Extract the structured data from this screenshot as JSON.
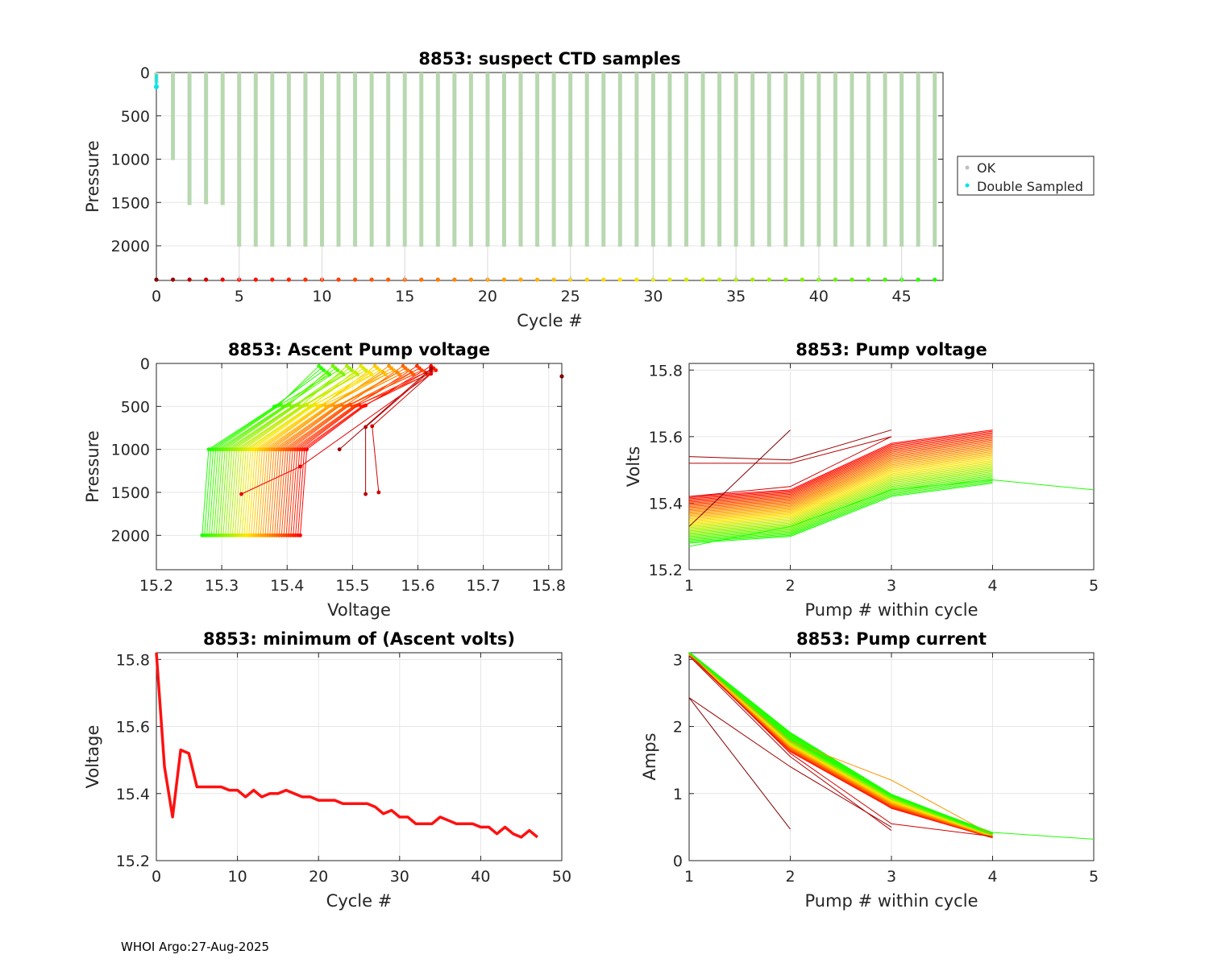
{
  "footer": "WHOI Argo:27-Aug-2025",
  "palette": {
    "ok": "#bfbfbf",
    "ok_bar": "#b8d8b0",
    "double": "#00e5ee",
    "min_line": "#ff1010"
  },
  "chart_data": [
    {
      "id": "suspect",
      "type": "scatter",
      "title": "8853: suspect CTD samples",
      "xlabel": "Cycle #",
      "ylabel": "Pressure",
      "xlim": [
        0,
        47.5
      ],
      "ylim": [
        2400,
        0
      ],
      "xticks": [
        0,
        5,
        10,
        15,
        20,
        25,
        30,
        35,
        40,
        45
      ],
      "yticks": [
        0,
        500,
        1000,
        1500,
        2000
      ],
      "legend": {
        "position": "right",
        "entries": [
          "OK",
          "Double Sampled"
        ]
      },
      "cycles": [
        0,
        1,
        2,
        3,
        4,
        5,
        6,
        7,
        8,
        9,
        10,
        11,
        12,
        13,
        14,
        15,
        16,
        17,
        18,
        19,
        20,
        21,
        22,
        23,
        24,
        25,
        26,
        27,
        28,
        29,
        30,
        31,
        32,
        33,
        34,
        35,
        36,
        37,
        38,
        39,
        40,
        41,
        42,
        43,
        44,
        45,
        46,
        47
      ],
      "max_pressure": [
        120,
        1010,
        1530,
        1520,
        1530,
        2010,
        2010,
        2010,
        2010,
        2010,
        2010,
        2010,
        2010,
        2010,
        2010,
        2010,
        2010,
        2010,
        2010,
        2010,
        2010,
        2010,
        2010,
        2010,
        2010,
        2010,
        2010,
        2010,
        2010,
        2010,
        2010,
        2010,
        2010,
        2010,
        2010,
        2010,
        2010,
        2010,
        2010,
        2010,
        2010,
        2010,
        2010,
        2010,
        2010,
        2010,
        2010,
        2010
      ],
      "double_sampled": {
        "cycle": 0,
        "pressure": [
          20,
          165
        ]
      }
    },
    {
      "id": "ascent",
      "type": "line",
      "title": "8853: Ascent Pump voltage",
      "xlabel": "Voltage",
      "ylabel": "Pressure",
      "xlim": [
        15.2,
        15.82
      ],
      "ylim": [
        2400,
        0
      ],
      "xticks": [
        15.2,
        15.3,
        15.4,
        15.5,
        15.6,
        15.7,
        15.8
      ],
      "yticks": [
        0,
        500,
        1000,
        1500,
        2000
      ],
      "pressures": [
        2000,
        1000,
        500,
        100
      ],
      "first_cycle": {
        "points": [
          [
            15.82,
            150
          ]
        ]
      },
      "early_cycles": [
        {
          "cycle": 1,
          "points": [
            [
              15.48,
              1000
            ],
            [
              15.62,
              60
            ]
          ]
        },
        {
          "cycle": 2,
          "points": [
            [
              15.52,
              1520
            ],
            [
              15.52,
              740
            ],
            [
              15.62,
              80
            ]
          ]
        },
        {
          "cycle": 3,
          "points": [
            [
              15.54,
              1500
            ],
            [
              15.53,
              730
            ],
            [
              15.62,
              120
            ]
          ]
        },
        {
          "cycle": 4,
          "points": [
            [
              15.33,
              1520
            ],
            [
              15.42,
              1200
            ],
            [
              15.62,
              120
            ]
          ]
        }
      ]
    },
    {
      "id": "pumpv",
      "type": "line",
      "title": "8853: Pump voltage",
      "xlabel": "Pump # within cycle",
      "ylabel": "Volts",
      "xlim": [
        1,
        5
      ],
      "ylim": [
        15.2,
        15.82
      ],
      "xticks": [
        1,
        2,
        3,
        4,
        5
      ],
      "yticks": [
        15.2,
        15.4,
        15.6,
        15.8
      ],
      "cycle_1": [
        15.33,
        15.62
      ],
      "cycles_2_to_4": [
        [
          15.54,
          15.53,
          15.62
        ],
        [
          15.52,
          15.52,
          15.6
        ],
        [
          15.42,
          15.45,
          15.6
        ]
      ],
      "extended_cycle": [
        15.27,
        15.33,
        15.44,
        15.47,
        15.44
      ]
    },
    {
      "id": "minv",
      "type": "line",
      "title": "8853: minimum of (Ascent volts)",
      "xlabel": "Cycle #",
      "ylabel": "Voltage",
      "xlim": [
        0,
        50
      ],
      "ylim": [
        15.2,
        15.82
      ],
      "xticks": [
        0,
        10,
        20,
        30,
        40,
        50
      ],
      "yticks": [
        15.2,
        15.4,
        15.6,
        15.8
      ],
      "x": [
        0,
        1,
        2,
        3,
        4,
        5,
        6,
        7,
        8,
        9,
        10,
        11,
        12,
        13,
        14,
        15,
        16,
        17,
        18,
        19,
        20,
        21,
        22,
        23,
        24,
        25,
        26,
        27,
        28,
        29,
        30,
        31,
        32,
        33,
        34,
        35,
        36,
        37,
        38,
        39,
        40,
        41,
        42,
        43,
        44,
        45,
        46,
        47
      ],
      "values": [
        15.82,
        15.48,
        15.33,
        15.53,
        15.52,
        15.42,
        15.42,
        15.42,
        15.42,
        15.41,
        15.41,
        15.39,
        15.41,
        15.39,
        15.4,
        15.4,
        15.41,
        15.4,
        15.39,
        15.39,
        15.38,
        15.38,
        15.38,
        15.37,
        15.37,
        15.37,
        15.37,
        15.36,
        15.34,
        15.35,
        15.33,
        15.33,
        15.31,
        15.31,
        15.31,
        15.33,
        15.32,
        15.31,
        15.31,
        15.31,
        15.3,
        15.3,
        15.28,
        15.3,
        15.28,
        15.27,
        15.29,
        15.27
      ]
    },
    {
      "id": "pumpc",
      "type": "line",
      "title": "8853: Pump current",
      "xlabel": "Pump # within cycle",
      "ylabel": "Amps",
      "xlim": [
        1,
        5
      ],
      "ylim": [
        0,
        3.1
      ],
      "xticks": [
        1,
        2,
        3,
        4,
        5
      ],
      "yticks": [
        0,
        1,
        2,
        3
      ],
      "cycle_1": [
        2.43,
        0.47
      ],
      "cycles_2_to_4": [
        [
          2.43,
          1.4,
          0.5
        ],
        [
          3.05,
          1.55,
          0.45
        ],
        [
          3.08,
          1.6,
          0.55,
          0.36
        ]
      ],
      "extended_cycle": [
        3.1,
        1.82,
        0.98,
        0.42,
        0.32
      ],
      "orange_outlier": [
        3.08,
        1.78,
        1.2,
        0.38
      ]
    }
  ]
}
